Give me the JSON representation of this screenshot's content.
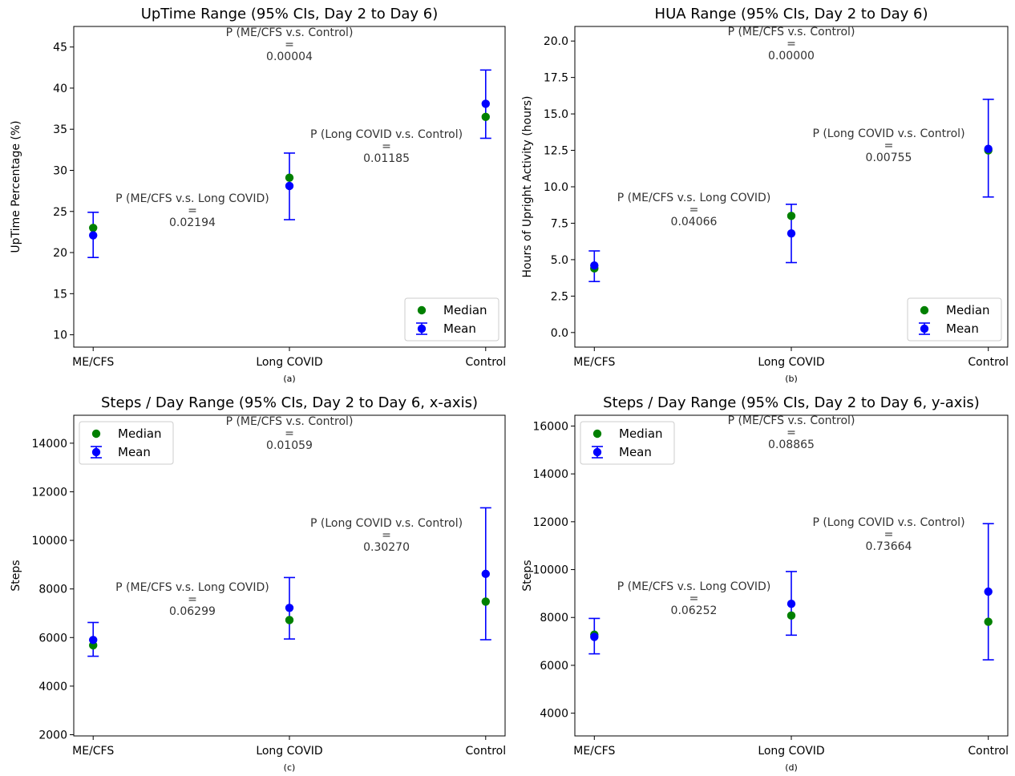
{
  "figure": {
    "colors": {
      "median": "#008000",
      "mean": "#0000ff",
      "frame": "#000000",
      "annotation": "#333333"
    }
  },
  "chart_data": [
    {
      "type": "scatter",
      "title": "UpTime Range (95% CIs, Day 2 to Day 6)",
      "caption": "(a)",
      "ylabel": "UpTime Percentage (%)",
      "categories": [
        "ME/CFS",
        "Long COVID",
        "Control"
      ],
      "ylim": [
        8.5,
        47.5
      ],
      "yticks": [
        10,
        15,
        20,
        25,
        30,
        35,
        40,
        45
      ],
      "legend": "lower-right",
      "series": [
        {
          "name": "Median",
          "values": [
            23.0,
            29.1,
            36.5
          ]
        },
        {
          "name": "Mean",
          "values": [
            22.1,
            28.1,
            38.1
          ],
          "ci_low": [
            19.4,
            24.0,
            33.9
          ],
          "ci_high": [
            24.9,
            32.1,
            42.2
          ]
        }
      ],
      "annotations": [
        {
          "label": "P (ME/CFS v.s. Control)",
          "eq": "=",
          "value": "0.00004"
        },
        {
          "label": "P (Long COVID v.s. Control)",
          "eq": "=",
          "value": "0.01185"
        },
        {
          "label": "P (ME/CFS v.s. Long COVID)",
          "eq": "=",
          "value": "0.02194"
        }
      ]
    },
    {
      "type": "scatter",
      "title": "HUA Range (95% CIs, Day 2 to Day 6)",
      "caption": "(b)",
      "ylabel": "Hours of Upright Activity (hours)",
      "categories": [
        "ME/CFS",
        "Long COVID",
        "Control"
      ],
      "ylim": [
        -1.0,
        21.0
      ],
      "yticks": [
        "0.0",
        "2.5",
        "5.0",
        "7.5",
        "10.0",
        "12.5",
        "15.0",
        "17.5",
        "20.0"
      ],
      "legend": "lower-right",
      "series": [
        {
          "name": "Median",
          "values": [
            4.4,
            8.0,
            12.5
          ]
        },
        {
          "name": "Mean",
          "values": [
            4.6,
            6.8,
            12.6
          ],
          "ci_low": [
            3.5,
            4.8,
            9.3
          ],
          "ci_high": [
            5.6,
            8.8,
            16.0
          ]
        }
      ],
      "annotations": [
        {
          "label": "P (ME/CFS v.s. Control)",
          "eq": "=",
          "value": "0.00000"
        },
        {
          "label": "P (Long COVID v.s. Control)",
          "eq": "=",
          "value": "0.00755"
        },
        {
          "label": "P (ME/CFS v.s. Long COVID)",
          "eq": "=",
          "value": "0.04066"
        }
      ]
    },
    {
      "type": "scatter",
      "title": "Steps  /  Day Range (95% CIs, Day 2 to Day 6, x-axis)",
      "caption": "(c)",
      "ylabel": "Steps",
      "categories": [
        "ME/CFS",
        "Long COVID",
        "Control"
      ],
      "ylim": [
        1950,
        15150
      ],
      "yticks": [
        2000,
        4000,
        6000,
        8000,
        10000,
        12000,
        14000
      ],
      "legend": "upper-left",
      "series": [
        {
          "name": "Median",
          "values": [
            5680,
            6720,
            7480
          ]
        },
        {
          "name": "Mean",
          "values": [
            5900,
            7220,
            8620
          ],
          "ci_low": [
            5230,
            5940,
            5910
          ],
          "ci_high": [
            6620,
            8470,
            11340
          ]
        }
      ],
      "annotations": [
        {
          "label": "P (ME/CFS v.s. Control)",
          "eq": "=",
          "value": "0.01059"
        },
        {
          "label": "P (Long COVID v.s. Control)",
          "eq": "=",
          "value": "0.30270"
        },
        {
          "label": "P (ME/CFS v.s. Long COVID)",
          "eq": "=",
          "value": "0.06299"
        }
      ]
    },
    {
      "type": "scatter",
      "title": "Steps  /  Day Range (95% CIs, Day 2 to Day 6, y-axis)",
      "caption": "(d)",
      "ylabel": "Steps",
      "categories": [
        "ME/CFS",
        "Long COVID",
        "Control"
      ],
      "ylim": [
        3050,
        16450
      ],
      "yticks": [
        4000,
        6000,
        8000,
        10000,
        12000,
        14000,
        16000
      ],
      "legend": "upper-left",
      "series": [
        {
          "name": "Median",
          "values": [
            7280,
            8080,
            7820
          ]
        },
        {
          "name": "Mean",
          "values": [
            7190,
            8570,
            9080
          ],
          "ci_low": [
            6480,
            7260,
            6230
          ],
          "ci_high": [
            7960,
            9920,
            11920
          ]
        }
      ],
      "annotations": [
        {
          "label": "P (ME/CFS v.s. Control)",
          "eq": "=",
          "value": "0.08865"
        },
        {
          "label": "P (Long COVID v.s. Control)",
          "eq": "=",
          "value": "0.73664"
        },
        {
          "label": "P (ME/CFS v.s. Long COVID)",
          "eq": "=",
          "value": "0.06252"
        }
      ]
    }
  ]
}
